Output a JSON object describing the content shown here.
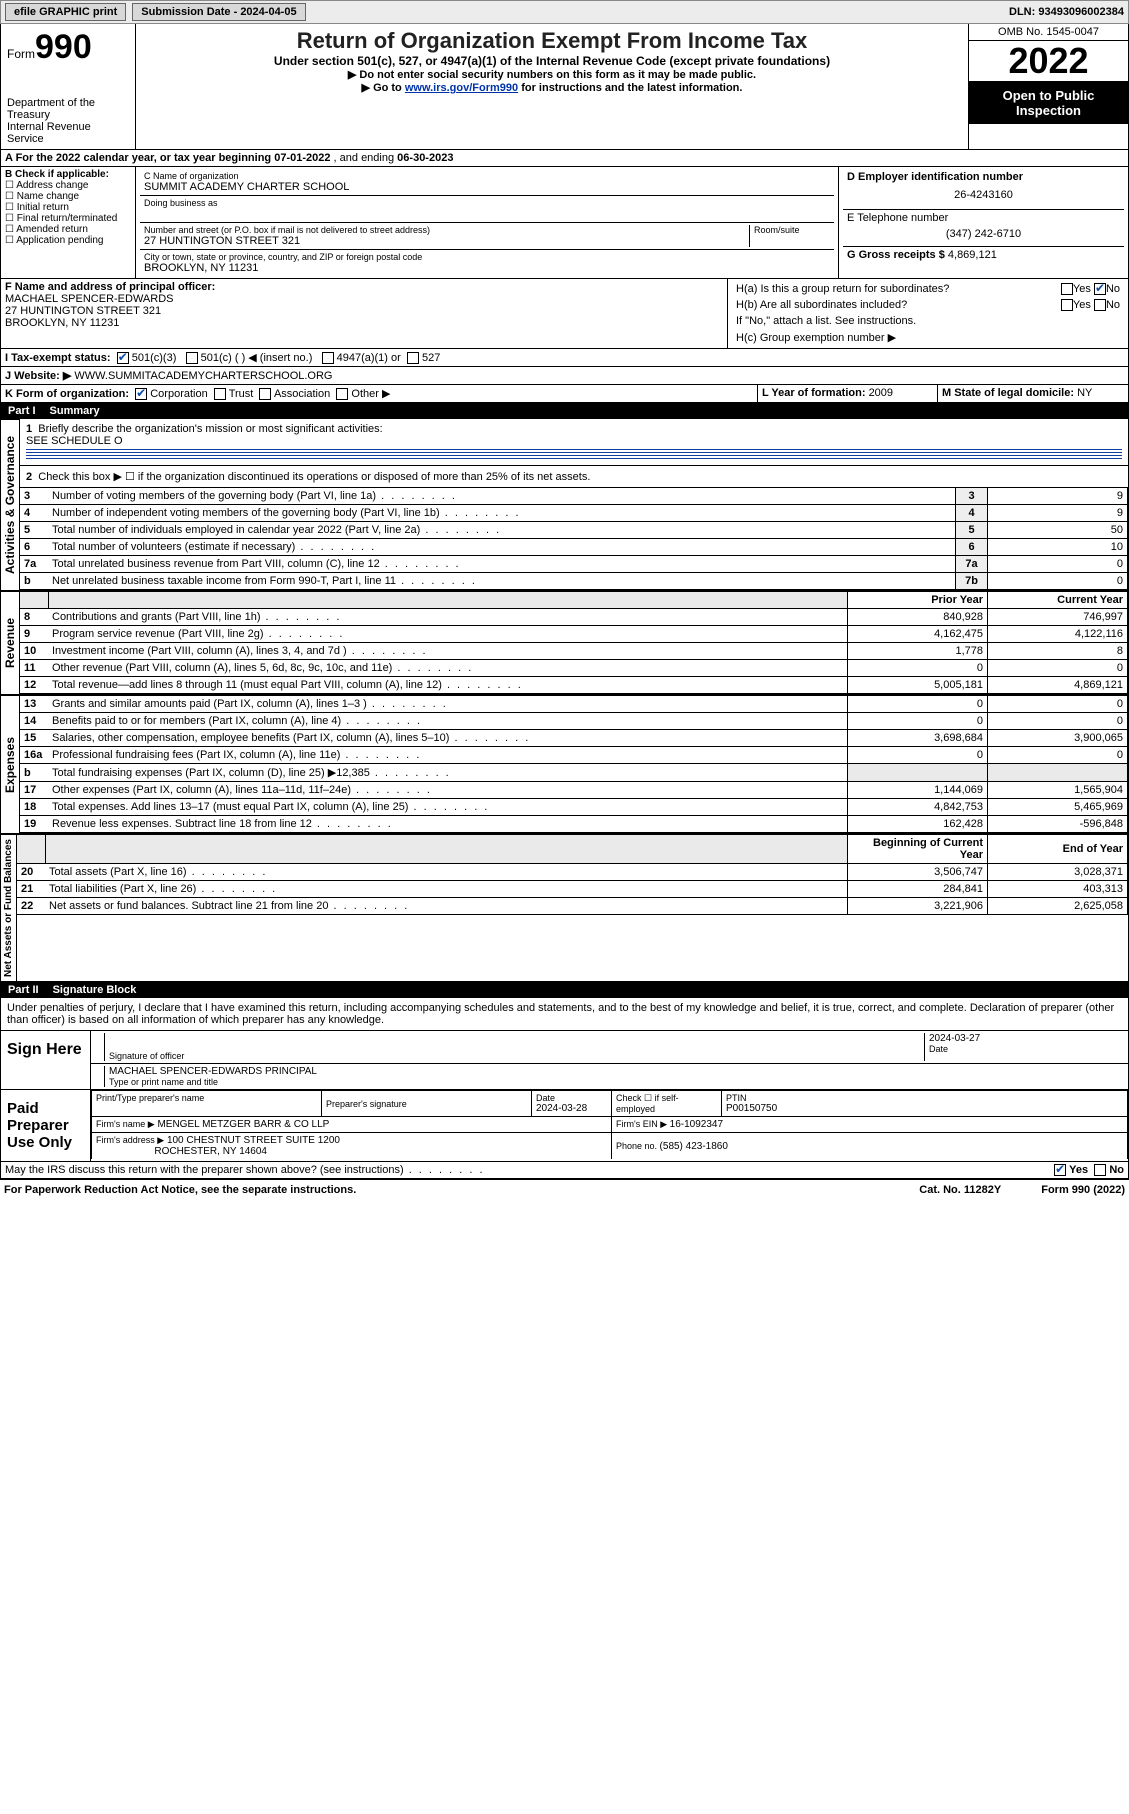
{
  "topbar": {
    "efile_label": "efile GRAPHIC print",
    "submission_label": "Submission Date - 2024-04-05",
    "dln_label": "DLN: 93493096002384"
  },
  "header": {
    "form_word": "Form",
    "form_num": "990",
    "dept": "Department of the Treasury",
    "irs": "Internal Revenue Service",
    "title": "Return of Organization Exempt From Income Tax",
    "sub1": "Under section 501(c), 527, or 4947(a)(1) of the Internal Revenue Code (except private foundations)",
    "sub2": "▶ Do not enter social security numbers on this form as it may be made public.",
    "sub3_prefix": "▶ Go to ",
    "sub3_link": "www.irs.gov/Form990",
    "sub3_suffix": " for instructions and the latest information.",
    "omb": "OMB No. 1545-0047",
    "year": "2022",
    "inspect": "Open to Public Inspection"
  },
  "A": {
    "label": "A For the 2022 calendar year, or tax year beginning ",
    "begin": "07-01-2022",
    "mid": " , and ending ",
    "end": "06-30-2023"
  },
  "B": {
    "label": "B Check if applicable:",
    "items": [
      "Address change",
      "Name change",
      "Initial return",
      "Final return/terminated",
      "Amended return",
      "Application pending"
    ]
  },
  "C": {
    "name_label": "C Name of organization",
    "name": "SUMMIT ACADEMY CHARTER SCHOOL",
    "dba_label": "Doing business as",
    "addr_label": "Number and street (or P.O. box if mail is not delivered to street address)",
    "room_label": "Room/suite",
    "addr": "27 HUNTINGTON STREET 321",
    "city_label": "City or town, state or province, country, and ZIP or foreign postal code",
    "city": "BROOKLYN, NY  11231"
  },
  "D": {
    "label": "D Employer identification number",
    "value": "26-4243160"
  },
  "E": {
    "label": "E Telephone number",
    "value": "(347) 242-6710"
  },
  "G": {
    "label": "G Gross receipts $ ",
    "value": "4,869,121"
  },
  "F": {
    "label": "F  Name and address of principal officer:",
    "name": "MACHAEL SPENCER-EDWARDS",
    "addr1": "27 HUNTINGTON STREET 321",
    "addr2": "BROOKLYN, NY  11231"
  },
  "H": {
    "a": "H(a)  Is this a group return for subordinates?",
    "b": "H(b)  Are all subordinates included?",
    "b_note": "If \"No,\" attach a list. See instructions.",
    "c": "H(c)  Group exemption number ▶",
    "yes": "Yes",
    "no": "No"
  },
  "I": {
    "label": "I    Tax-exempt status:",
    "opts": [
      "501(c)(3)",
      "501(c) (  ) ◀ (insert no.)",
      "4947(a)(1) or",
      "527"
    ]
  },
  "J": {
    "label": "J   Website: ▶ ",
    "value": "WWW.SUMMITACADEMYCHARTERSCHOOL.ORG"
  },
  "K": {
    "label": "K Form of organization:",
    "opts": [
      "Corporation",
      "Trust",
      "Association",
      "Other ▶"
    ]
  },
  "L": {
    "label": "L Year of formation: ",
    "value": "2009"
  },
  "M": {
    "label": "M State of legal domicile: ",
    "value": "NY"
  },
  "partI": {
    "num": "Part I",
    "title": "Summary"
  },
  "summary": {
    "line1": "Briefly describe the organization's mission or most significant activities:",
    "line1val": "SEE SCHEDULE O",
    "line2": "Check this box ▶ ☐  if the organization discontinued its operations or disposed of more than 25% of its net assets.",
    "rows_gov": [
      {
        "n": "3",
        "d": "Number of voting members of the governing body (Part VI, line 1a)",
        "k": "3",
        "v": "9"
      },
      {
        "n": "4",
        "d": "Number of independent voting members of the governing body (Part VI, line 1b)",
        "k": "4",
        "v": "9"
      },
      {
        "n": "5",
        "d": "Total number of individuals employed in calendar year 2022 (Part V, line 2a)",
        "k": "5",
        "v": "50"
      },
      {
        "n": "6",
        "d": "Total number of volunteers (estimate if necessary)",
        "k": "6",
        "v": "10"
      },
      {
        "n": "7a",
        "d": "Total unrelated business revenue from Part VIII, column (C), line 12",
        "k": "7a",
        "v": "0"
      },
      {
        "n": "b",
        "d": "Net unrelated business taxable income from Form 990-T, Part I, line 11",
        "k": "7b",
        "v": "0"
      }
    ],
    "prior_hdr": "Prior Year",
    "curr_hdr": "Current Year",
    "rows_rev": [
      {
        "n": "8",
        "d": "Contributions and grants (Part VIII, line 1h)",
        "p": "840,928",
        "c": "746,997"
      },
      {
        "n": "9",
        "d": "Program service revenue (Part VIII, line 2g)",
        "p": "4,162,475",
        "c": "4,122,116"
      },
      {
        "n": "10",
        "d": "Investment income (Part VIII, column (A), lines 3, 4, and 7d )",
        "p": "1,778",
        "c": "8"
      },
      {
        "n": "11",
        "d": "Other revenue (Part VIII, column (A), lines 5, 6d, 8c, 9c, 10c, and 11e)",
        "p": "0",
        "c": "0"
      },
      {
        "n": "12",
        "d": "Total revenue—add lines 8 through 11 (must equal Part VIII, column (A), line 12)",
        "p": "5,005,181",
        "c": "4,869,121"
      }
    ],
    "rows_exp": [
      {
        "n": "13",
        "d": "Grants and similar amounts paid (Part IX, column (A), lines 1–3 )",
        "p": "0",
        "c": "0"
      },
      {
        "n": "14",
        "d": "Benefits paid to or for members (Part IX, column (A), line 4)",
        "p": "0",
        "c": "0"
      },
      {
        "n": "15",
        "d": "Salaries, other compensation, employee benefits (Part IX, column (A), lines 5–10)",
        "p": "3,698,684",
        "c": "3,900,065"
      },
      {
        "n": "16a",
        "d": "Professional fundraising fees (Part IX, column (A), line 11e)",
        "p": "0",
        "c": "0"
      },
      {
        "n": "b",
        "d": "Total fundraising expenses (Part IX, column (D), line 25) ▶12,385",
        "p": "",
        "c": ""
      },
      {
        "n": "17",
        "d": "Other expenses (Part IX, column (A), lines 11a–11d, 11f–24e)",
        "p": "1,144,069",
        "c": "1,565,904"
      },
      {
        "n": "18",
        "d": "Total expenses. Add lines 13–17 (must equal Part IX, column (A), line 25)",
        "p": "4,842,753",
        "c": "5,465,969"
      },
      {
        "n": "19",
        "d": "Revenue less expenses. Subtract line 18 from line 12",
        "p": "162,428",
        "c": "-596,848"
      }
    ],
    "bal_hdr_l": "Beginning of Current Year",
    "bal_hdr_r": "End of Year",
    "rows_bal": [
      {
        "n": "20",
        "d": "Total assets (Part X, line 16)",
        "p": "3,506,747",
        "c": "3,028,371"
      },
      {
        "n": "21",
        "d": "Total liabilities (Part X, line 26)",
        "p": "284,841",
        "c": "403,313"
      },
      {
        "n": "22",
        "d": "Net assets or fund balances. Subtract line 21 from line 20",
        "p": "3,221,906",
        "c": "2,625,058"
      }
    ],
    "vlabels": {
      "gov": "Activities & Governance",
      "rev": "Revenue",
      "exp": "Expenses",
      "bal": "Net Assets or Fund Balances"
    }
  },
  "partII": {
    "num": "Part II",
    "title": "Signature Block"
  },
  "sig": {
    "decl": "Under penalties of perjury, I declare that I have examined this return, including accompanying schedules and statements, and to the best of my knowledge and belief, it is true, correct, and complete. Declaration of preparer (other than officer) is based on all information of which preparer has any knowledge.",
    "sign_here": "Sign Here",
    "sig_officer": "Signature of officer",
    "date": "Date",
    "sig_date": "2024-03-27",
    "name_title": "MACHAEL SPENCER-EDWARDS  PRINCIPAL",
    "type_name": "Type or print name and title",
    "paid": "Paid Preparer Use Only",
    "pt_name": "Print/Type preparer's name",
    "pp_sig": "Preparer's signature",
    "pp_date_l": "Date",
    "pp_date": "2024-03-28",
    "check_se": "Check ☐ if self-employed",
    "ptin_l": "PTIN",
    "ptin": "P00150750",
    "firm_name_l": "Firm's name    ▶",
    "firm_name": "MENGEL METZGER BARR & CO LLP",
    "firm_ein_l": "Firm's EIN ▶ ",
    "firm_ein": "16-1092347",
    "firm_addr_l": "Firm's address ▶",
    "firm_addr": "100 CHESTNUT STREET SUITE 1200",
    "firm_city": "ROCHESTER, NY  14604",
    "phone_l": "Phone no. ",
    "phone": "(585) 423-1860",
    "discuss": "May the IRS discuss this return with the preparer shown above? (see instructions)",
    "paperwork": "For Paperwork Reduction Act Notice, see the separate instructions.",
    "cat": "Cat. No. 11282Y",
    "formver": "Form 990 (2022)"
  }
}
